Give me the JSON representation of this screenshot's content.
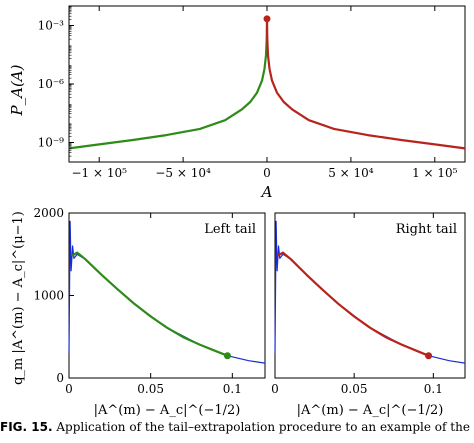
{
  "chart_data": [
    {
      "type": "line",
      "title": "",
      "xlabel": "A",
      "ylabel": "P_A(A)",
      "yscale": "log",
      "xlim": [
        -118000,
        118000
      ],
      "ylim": [
        1e-10,
        0.01
      ],
      "x_ticks": [
        {
          "value": -100000,
          "label": "−1 × 10⁵"
        },
        {
          "value": -50000,
          "label": "−5 × 10⁴"
        },
        {
          "value": 0,
          "label": "0"
        },
        {
          "value": 50000,
          "label": "5 × 10⁴"
        },
        {
          "value": 100000,
          "label": "1 × 10⁵"
        }
      ],
      "y_ticks": [
        {
          "value": 0.001,
          "label": "10⁻³"
        },
        {
          "value": 1e-06,
          "label": "10⁻⁶"
        },
        {
          "value": 1e-09,
          "label": "10⁻⁹"
        }
      ],
      "series": [
        {
          "color": "#2e8b1a",
          "x": [
            -118000,
            -100000,
            -80000,
            -60000,
            -40000,
            -25000,
            -15000,
            -10000,
            -6000,
            -3000,
            -1500,
            -600,
            -150,
            0
          ],
          "y": [
            5e-10,
            8e-10,
            1.35e-09,
            2.4e-09,
            5e-09,
            1.4e-08,
            5e-08,
            1.2e-07,
            3.5e-07,
            1.5e-06,
            6e-06,
            3e-05,
            0.0002,
            0.0022
          ]
        },
        {
          "color": "#b8231b",
          "x": [
            0,
            150,
            600,
            1500,
            3000,
            6000,
            10000,
            15000,
            25000,
            40000,
            60000,
            80000,
            100000,
            118000
          ],
          "y": [
            0.0022,
            0.0002,
            3e-05,
            6e-06,
            1.5e-06,
            3.5e-07,
            1.2e-07,
            5e-08,
            1.4e-08,
            5e-09,
            2.4e-09,
            1.35e-09,
            8e-10,
            5e-10
          ]
        }
      ],
      "markers": [
        {
          "x": 0,
          "y": 0.0022,
          "color": "#b8231b"
        }
      ]
    },
    {
      "type": "line",
      "title": "Left tail",
      "xlabel": "|A^(m) − A_c|^(−1/2)",
      "ylabel": "q_m |A^(m) − A_c|^(μ−1)",
      "xlim": [
        0,
        0.12
      ],
      "ylim": [
        0,
        2000
      ],
      "x_ticks": [
        {
          "value": 0,
          "label": "0"
        },
        {
          "value": 0.05,
          "label": "0.05"
        },
        {
          "value": 0.1,
          "label": "0.1"
        }
      ],
      "y_ticks": [
        {
          "value": 0,
          "label": "0"
        },
        {
          "value": 1000,
          "label": "1000"
        },
        {
          "value": 2000,
          "label": "2000"
        }
      ],
      "series": [
        {
          "color": "#2e8b1a",
          "x": [
            0.0015,
            0.005,
            0.01,
            0.02,
            0.03,
            0.04,
            0.05,
            0.06,
            0.07,
            0.08,
            0.09,
            0.097
          ],
          "y": [
            1480,
            1520,
            1440,
            1250,
            1070,
            900,
            745,
            610,
            495,
            405,
            325,
            270
          ]
        },
        {
          "color": "#1a2bd6",
          "x": [
            0.0,
            0.0007,
            0.0013,
            0.0022,
            0.003,
            0.005,
            0.01,
            0.02,
            0.04,
            0.06,
            0.08,
            0.097,
            0.11,
            0.12
          ],
          "y": [
            300,
            1900,
            1300,
            1600,
            1450,
            1500,
            1440,
            1250,
            900,
            610,
            405,
            270,
            210,
            180
          ]
        }
      ],
      "markers": [
        {
          "x": 0.097,
          "y": 270,
          "color": "#2e8b1a"
        }
      ]
    },
    {
      "type": "line",
      "title": "Right tail",
      "xlabel": "|A^(m) − A_c|^(−1/2)",
      "ylabel": "",
      "xlim": [
        0,
        0.12
      ],
      "ylim": [
        0,
        2000
      ],
      "x_ticks": [
        {
          "value": 0,
          "label": "0"
        },
        {
          "value": 0.05,
          "label": "0.05"
        },
        {
          "value": 0.1,
          "label": "0.1"
        }
      ],
      "y_ticks": [],
      "series": [
        {
          "color": "#b8231b",
          "x": [
            0.0015,
            0.005,
            0.01,
            0.02,
            0.03,
            0.04,
            0.05,
            0.06,
            0.07,
            0.08,
            0.09,
            0.097
          ],
          "y": [
            1480,
            1520,
            1440,
            1250,
            1070,
            900,
            745,
            610,
            495,
            405,
            325,
            270
          ]
        },
        {
          "color": "#1a2bd6",
          "x": [
            0.0,
            0.0007,
            0.0013,
            0.0022,
            0.003,
            0.005,
            0.01,
            0.02,
            0.04,
            0.06,
            0.08,
            0.097,
            0.11,
            0.12
          ],
          "y": [
            300,
            1900,
            1300,
            1600,
            1450,
            1500,
            1440,
            1250,
            900,
            610,
            405,
            270,
            210,
            180
          ]
        }
      ],
      "markers": [
        {
          "x": 0.097,
          "y": 270,
          "color": "#b8231b"
        }
      ]
    }
  ],
  "caption": {
    "label": "FIG. 15.",
    "text": "Application of the tail–extrapolation procedure to an example of the"
  }
}
